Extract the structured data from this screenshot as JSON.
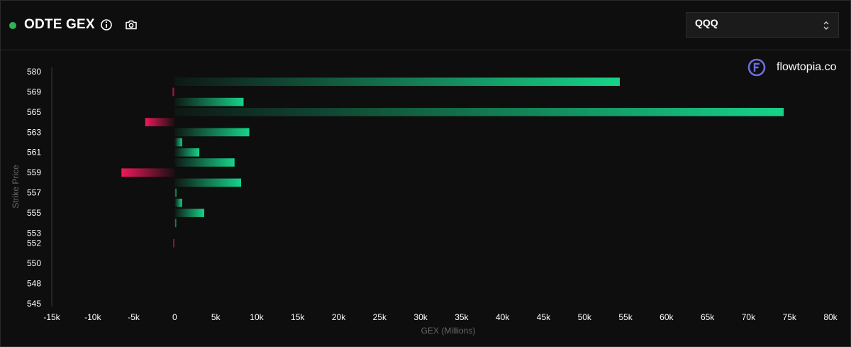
{
  "header": {
    "title": "ODTE GEX",
    "status_color": "#2fb35a",
    "info_icon": "info-icon",
    "camera_icon": "camera-icon"
  },
  "ticker_select": {
    "value": "QQQ",
    "icon": "chevron-up-down-icon"
  },
  "brand": {
    "name": "flowtopia.co",
    "logo_icon": "flowtopia-logo-icon",
    "logo_color": "#6a6ee0"
  },
  "chart_data": {
    "type": "bar",
    "orientation": "horizontal",
    "xlabel": "GEX (Millions)",
    "ylabel": "Strike Price",
    "xlim": [
      -15000,
      80000
    ],
    "x_ticks": [
      -15000,
      -10000,
      -5000,
      0,
      5000,
      10000,
      15000,
      20000,
      25000,
      30000,
      35000,
      40000,
      45000,
      50000,
      55000,
      60000,
      65000,
      70000,
      75000,
      80000
    ],
    "x_tick_labels": [
      "-15k",
      "-10k",
      "-5k",
      "0",
      "5k",
      "10k",
      "15k",
      "20k",
      "25k",
      "30k",
      "35k",
      "40k",
      "45k",
      "50k",
      "55k",
      "60k",
      "65k",
      "70k",
      "75k",
      "80k"
    ],
    "y_tick_labels": [
      "580",
      "569",
      "565",
      "563",
      "561",
      "559",
      "557",
      "555",
      "553",
      "552",
      "550",
      "548",
      "545"
    ],
    "strikes": [
      580,
      570,
      569,
      566,
      565,
      564,
      563,
      562,
      561,
      560,
      559,
      558,
      557,
      556,
      555,
      554,
      553,
      552,
      551,
      550,
      549,
      548,
      547,
      545
    ],
    "values": [
      0,
      54300,
      -250,
      8400,
      74300,
      -3600,
      9100,
      900,
      3000,
      7300,
      -6500,
      8100,
      200,
      900,
      3600,
      80,
      0,
      -150,
      0,
      0,
      0,
      0,
      0,
      0
    ],
    "positive_color": "#17d38a",
    "negative_color": "#f0195a",
    "grid": false
  }
}
